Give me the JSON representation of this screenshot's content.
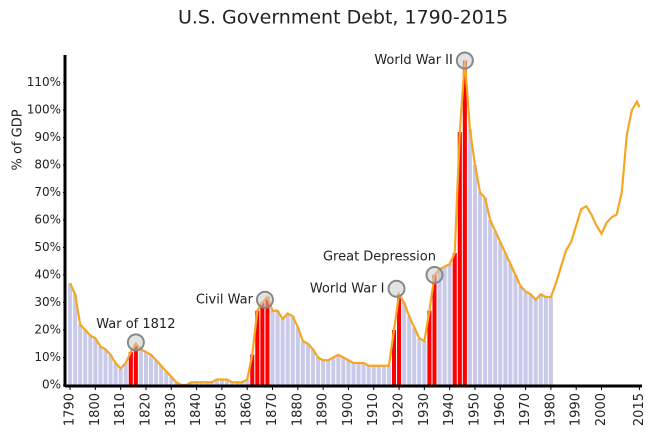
{
  "chart_data": {
    "type": "line",
    "title": "U.S. Government Debt, 1790-2015",
    "y_label": "% of GDP",
    "x": [
      1790,
      1792,
      1794,
      1796,
      1798,
      1800,
      1802,
      1804,
      1806,
      1808,
      1810,
      1812,
      1814,
      1816,
      1818,
      1820,
      1822,
      1824,
      1826,
      1828,
      1830,
      1832,
      1834,
      1836,
      1838,
      1840,
      1842,
      1844,
      1846,
      1848,
      1850,
      1852,
      1854,
      1856,
      1858,
      1860,
      1862,
      1864,
      1866,
      1868,
      1870,
      1872,
      1874,
      1876,
      1878,
      1880,
      1882,
      1884,
      1886,
      1888,
      1890,
      1892,
      1894,
      1896,
      1898,
      1900,
      1902,
      1904,
      1906,
      1908,
      1910,
      1912,
      1914,
      1916,
      1918,
      1920,
      1922,
      1924,
      1926,
      1928,
      1930,
      1932,
      1934,
      1936,
      1938,
      1940,
      1942,
      1944,
      1946,
      1948,
      1950,
      1952,
      1954,
      1956,
      1958,
      1960,
      1962,
      1964,
      1966,
      1968,
      1970,
      1972,
      1974,
      1976,
      1978,
      1980,
      1982,
      1984,
      1986,
      1988,
      1990,
      1992,
      1994,
      1996,
      1998,
      2000,
      2002,
      2004,
      2006,
      2008,
      2010,
      2012,
      2014,
      2015
    ],
    "series": [
      {
        "type": "bar",
        "color": "#c9c9ea",
        "values": [
          37,
          33,
          22,
          20,
          18,
          17,
          14,
          13,
          11,
          8,
          6,
          8,
          12,
          15,
          13,
          12,
          11,
          9,
          7,
          5,
          3,
          1,
          0,
          0,
          1,
          1,
          1,
          1,
          1,
          2,
          2,
          2,
          1,
          1,
          1,
          2,
          11,
          27,
          30,
          32,
          27,
          27,
          24,
          26,
          25,
          21,
          16,
          15,
          13,
          10,
          9,
          9,
          10,
          11,
          10,
          9,
          8,
          8,
          8,
          7,
          7,
          7,
          7,
          7,
          20,
          33,
          30,
          25,
          21,
          17,
          16,
          27,
          40,
          42,
          43,
          44,
          48,
          92,
          118,
          93,
          80,
          70,
          68,
          60,
          56,
          52,
          48,
          44,
          40,
          36,
          34,
          33,
          31,
          33,
          32,
          32,
          null,
          null,
          null,
          null,
          null,
          null,
          null,
          null,
          null,
          null,
          null,
          null,
          null,
          null,
          null,
          null,
          null,
          null
        ]
      },
      {
        "type": "bar",
        "color": "#ff0000",
        "values": [
          null,
          null,
          null,
          null,
          null,
          null,
          null,
          null,
          null,
          null,
          null,
          null,
          12,
          15,
          null,
          null,
          null,
          null,
          null,
          null,
          null,
          null,
          null,
          null,
          null,
          null,
          null,
          null,
          null,
          null,
          null,
          null,
          null,
          null,
          null,
          null,
          11,
          27,
          30,
          32,
          null,
          null,
          null,
          null,
          null,
          null,
          null,
          null,
          null,
          null,
          null,
          null,
          null,
          null,
          null,
          null,
          null,
          null,
          null,
          null,
          null,
          null,
          null,
          null,
          20,
          33,
          null,
          null,
          null,
          null,
          null,
          27,
          40,
          null,
          null,
          null,
          48,
          92,
          118,
          null,
          null,
          null,
          null,
          null,
          null,
          null,
          null,
          null,
          null,
          null,
          null,
          null,
          null,
          null,
          null,
          null,
          null,
          null,
          null,
          null,
          null,
          null,
          null,
          null,
          null,
          null,
          null,
          null,
          null,
          null,
          null,
          null,
          null,
          null
        ]
      },
      {
        "type": "line",
        "color": "#f5a623",
        "values": [
          37,
          33,
          22,
          20,
          18,
          17,
          14,
          13,
          11,
          8,
          6,
          8,
          12,
          15,
          13,
          12,
          11,
          9,
          7,
          5,
          3,
          1,
          0,
          0,
          1,
          1,
          1,
          1,
          1,
          2,
          2,
          2,
          1,
          1,
          1,
          2,
          11,
          27,
          30,
          32,
          27,
          27,
          24,
          26,
          25,
          21,
          16,
          15,
          13,
          10,
          9,
          9,
          10,
          11,
          10,
          9,
          8,
          8,
          8,
          7,
          7,
          7,
          7,
          7,
          20,
          33,
          30,
          25,
          21,
          17,
          16,
          27,
          40,
          42,
          43,
          44,
          48,
          92,
          118,
          93,
          80,
          70,
          68,
          60,
          56,
          52,
          48,
          44,
          40,
          36,
          34,
          33,
          31,
          33,
          32,
          32,
          37,
          43,
          49,
          52,
          58,
          64,
          65,
          62,
          58,
          55,
          59,
          61,
          62,
          70,
          91,
          100,
          103,
          101
        ]
      }
    ],
    "annotations": [
      {
        "text": "War of 1812",
        "x": 1816,
        "y": 15.5,
        "side": "above"
      },
      {
        "text": "Civil War",
        "x": 1867,
        "y": 31,
        "side": "left"
      },
      {
        "text": "World War I",
        "x": 1919,
        "y": 35,
        "side": "left"
      },
      {
        "text": "Great Depression",
        "x": 1934,
        "y": 40,
        "side": "above"
      },
      {
        "text": "World War II",
        "x": 1946,
        "y": 118,
        "side": "left"
      }
    ],
    "xlim": [
      1788,
      2016
    ],
    "ylim": [
      0,
      120
    ],
    "xticks": [
      1790,
      1800,
      1810,
      1820,
      1830,
      1840,
      1850,
      1860,
      1870,
      1880,
      1890,
      1900,
      1910,
      1920,
      1930,
      1940,
      1950,
      1960,
      1970,
      1980,
      1990,
      2000,
      2015
    ],
    "yticks": [
      {
        "value": 0,
        "label": "0%"
      },
      {
        "value": 10,
        "label": "10%"
      },
      {
        "value": 20,
        "label": "20%"
      },
      {
        "value": 30,
        "label": "30%"
      },
      {
        "value": 40,
        "label": "40%"
      },
      {
        "value": 50,
        "label": "50%"
      },
      {
        "value": 60,
        "label": "60%"
      },
      {
        "value": 70,
        "label": "70%"
      },
      {
        "value": 80,
        "label": "80%"
      },
      {
        "value": 90,
        "label": "90%"
      },
      {
        "value": 100,
        "label": "100%"
      },
      {
        "value": 110,
        "label": "110%"
      }
    ]
  }
}
